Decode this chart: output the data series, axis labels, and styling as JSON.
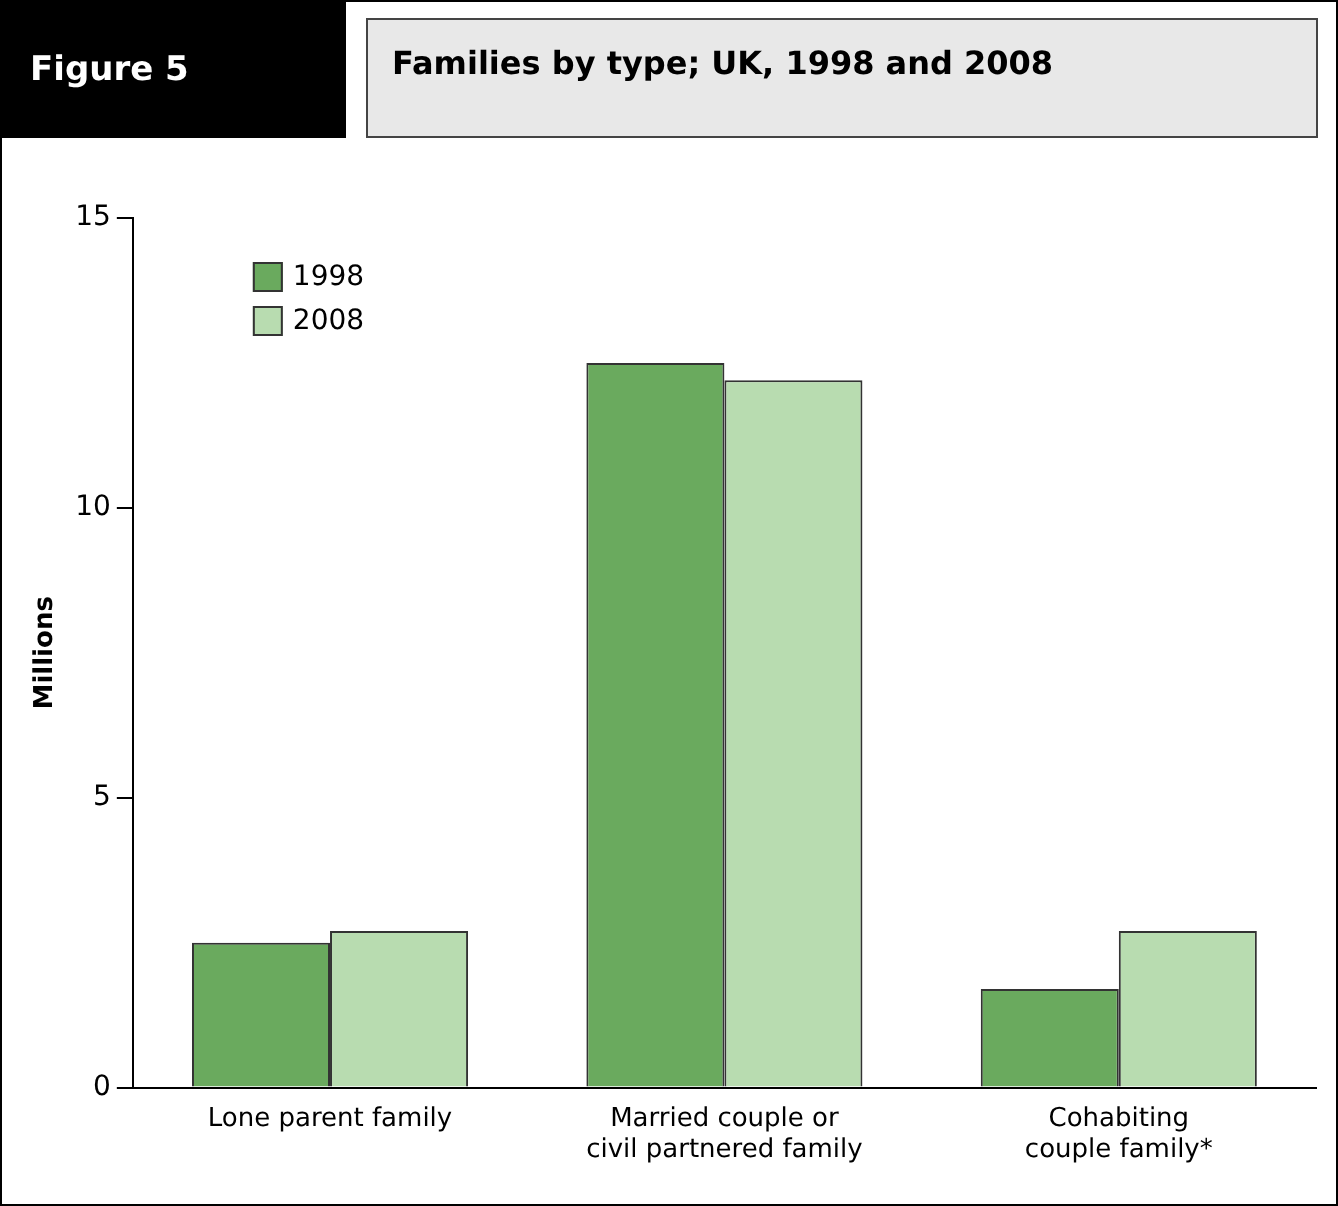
{
  "chart_data": {
    "type": "bar",
    "title": "Families by type; UK, 1998 and 2008",
    "annotations": [
      "Figure 5"
    ],
    "ylabel": "Millions",
    "categories": [
      "Lone parent family",
      "Married couple or\ncivil partnered family",
      "Cohabiting\ncouple family*"
    ],
    "series": [
      {
        "name": "1998",
        "color": "#6aaa5e",
        "values": [
          2.5,
          12.5,
          1.7
        ]
      },
      {
        "name": "2008",
        "color": "#b8dcb0",
        "values": [
          2.7,
          12.2,
          2.7
        ]
      }
    ],
    "ylim": [
      0,
      15
    ],
    "yticks": [
      0,
      5,
      10,
      15
    ],
    "grid": false,
    "legend": "top left"
  }
}
